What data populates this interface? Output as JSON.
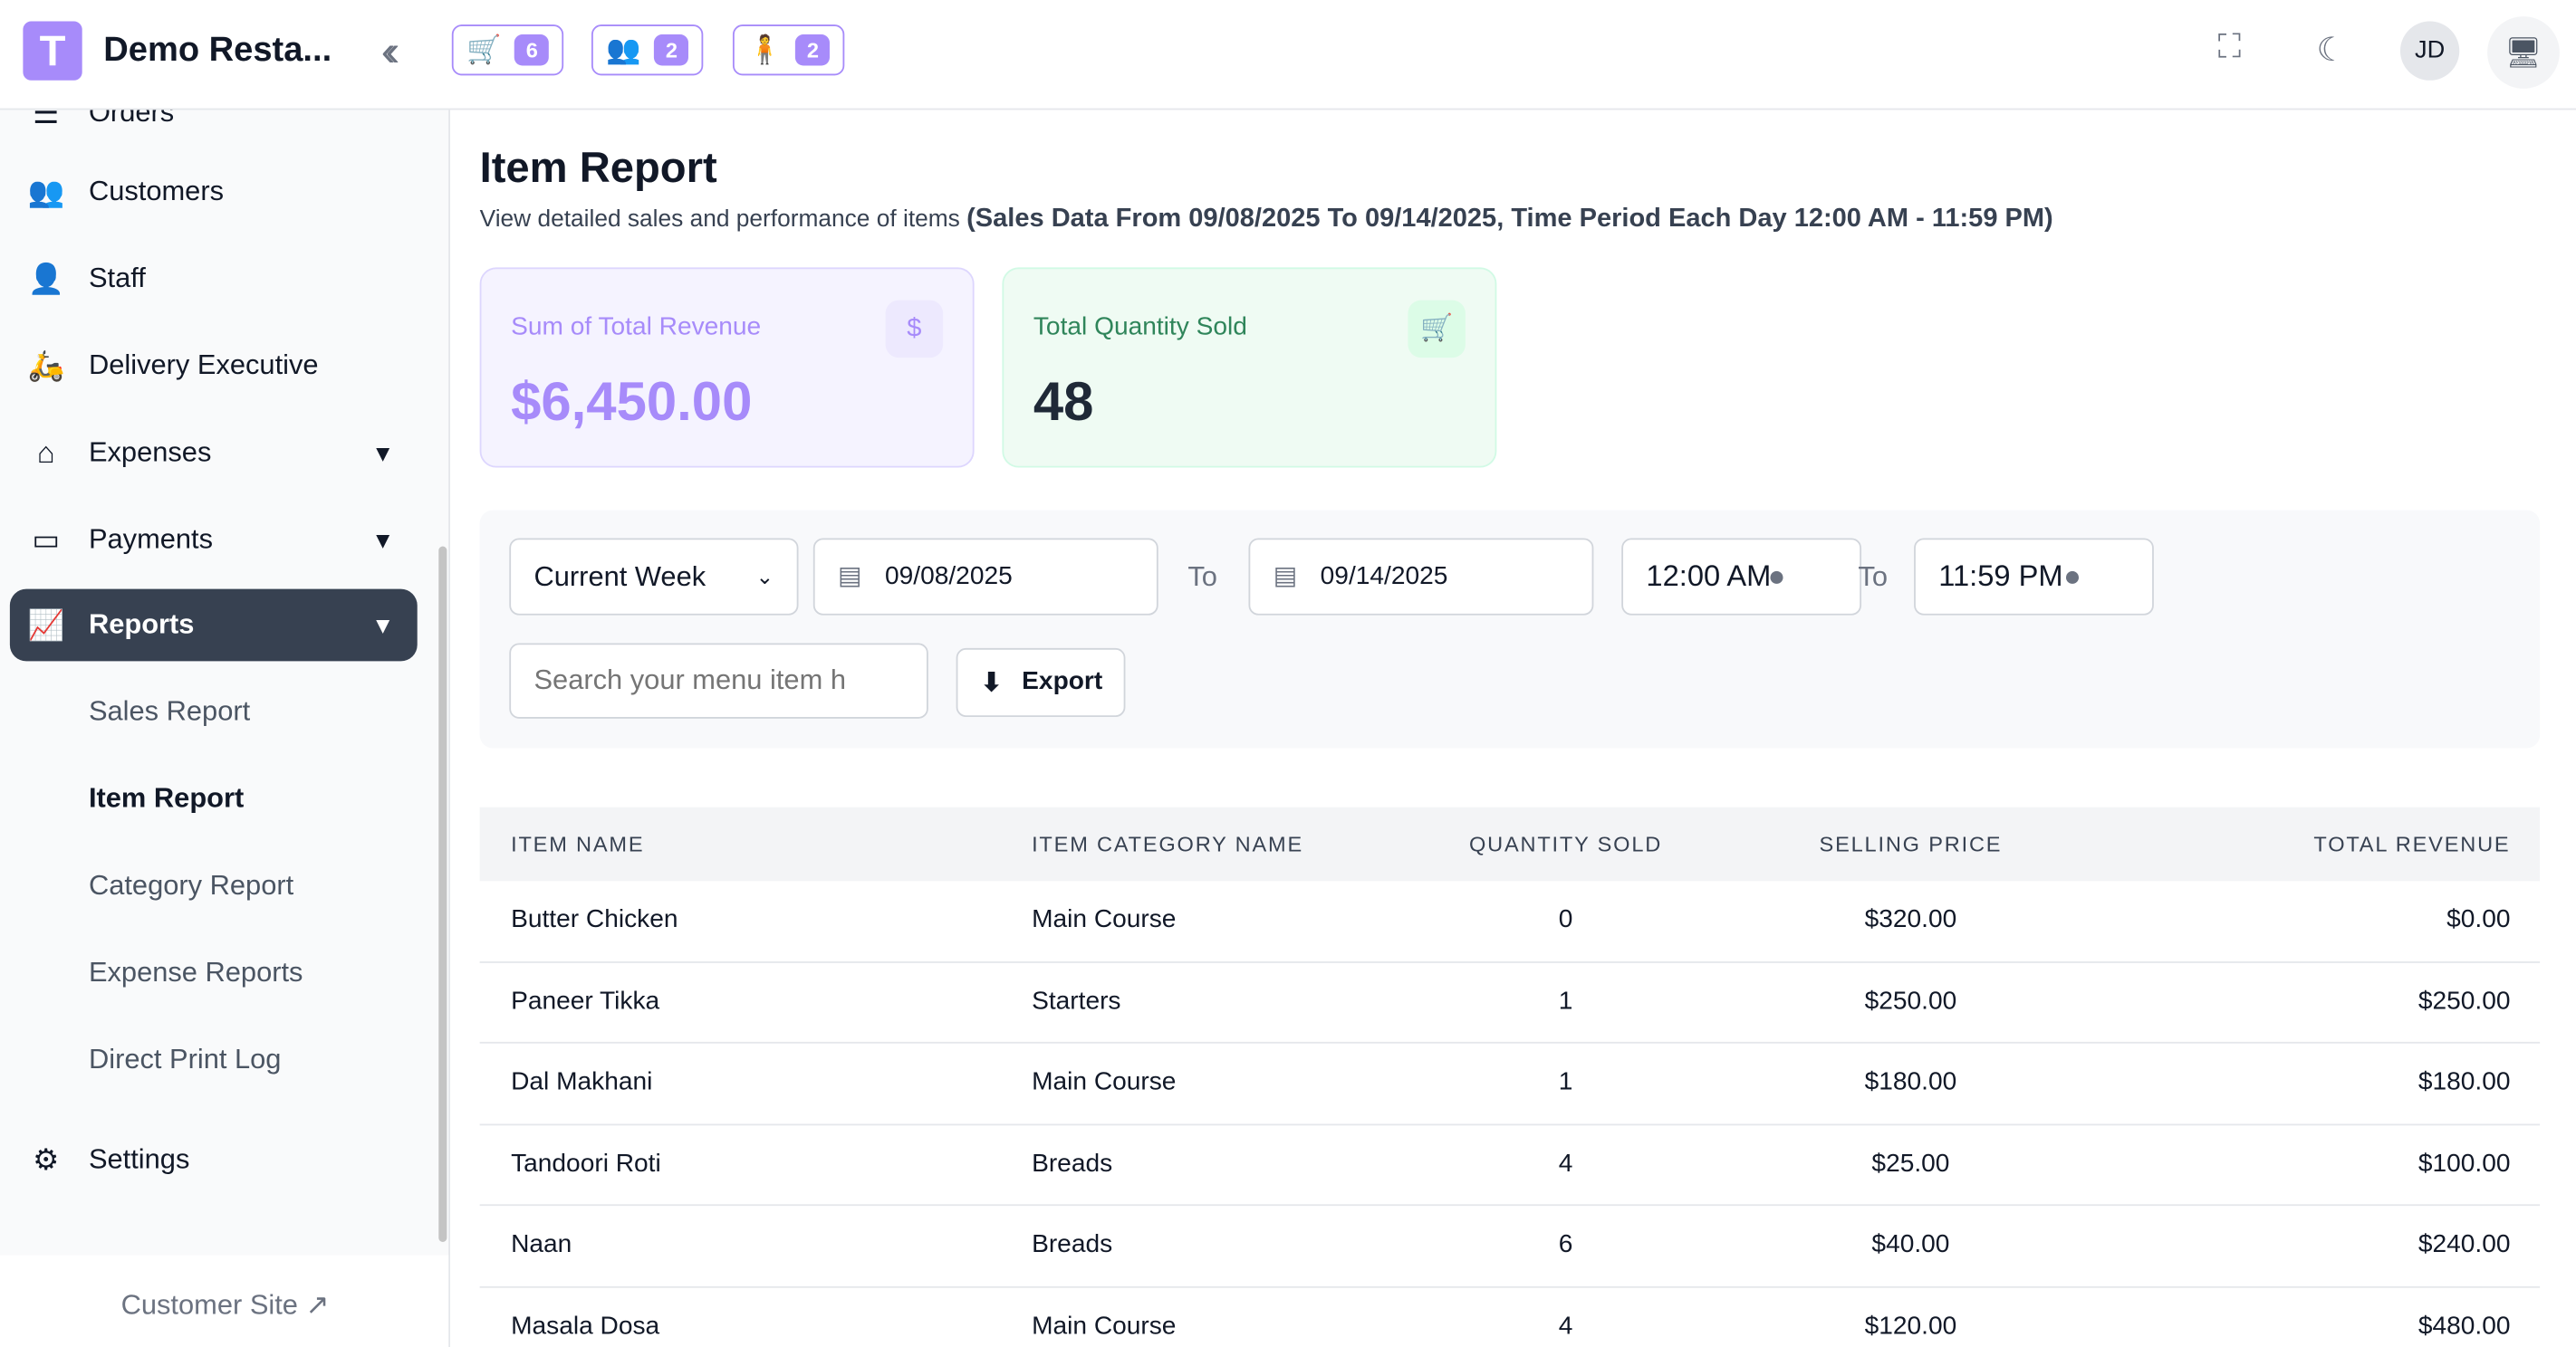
{
  "header": {
    "logo_letter": "T",
    "brand": "Demo Resta...",
    "badges": [
      {
        "icon": "cart-check-icon",
        "count": "6"
      },
      {
        "icon": "waiter-icon",
        "count": "2"
      },
      {
        "icon": "delivery-person-icon",
        "count": "2"
      }
    ],
    "avatar": "JD"
  },
  "sidebar": {
    "items": [
      {
        "label": "Orders"
      },
      {
        "label": "Customers"
      },
      {
        "label": "Staff"
      },
      {
        "label": "Delivery Executive"
      },
      {
        "label": "Expenses"
      },
      {
        "label": "Payments"
      },
      {
        "label": "Reports"
      },
      {
        "label": "Settings"
      }
    ],
    "report_sub": [
      "Sales Report",
      "Item Report",
      "Category Report",
      "Expense Reports",
      "Direct Print Log"
    ],
    "customer_site": "Customer Site"
  },
  "page": {
    "title": "Item Report",
    "description": "View detailed sales and performance of items",
    "range_note": "(Sales Data From 09/08/2025 To 09/14/2025, Time Period Each Day 12:00 AM - 11:59 PM)"
  },
  "cards": {
    "revenue": {
      "label": "Sum of Total Revenue",
      "value": "$6,450.00",
      "color": "#a78bfa"
    },
    "quantity": {
      "label": "Total Quantity Sold",
      "value": "48",
      "color": "#2f855a"
    }
  },
  "filters": {
    "period": "Current Week",
    "start_date": "09/08/2025",
    "to": "To",
    "end_date": "09/14/2025",
    "start_time": "12:00 AM",
    "end_time": "11:59 PM",
    "search_placeholder": "Search your menu item h",
    "export": "Export"
  },
  "table": {
    "headers": [
      "ITEM NAME",
      "ITEM CATEGORY NAME",
      "QUANTITY SOLD",
      "SELLING PRICE",
      "TOTAL REVENUE"
    ],
    "rows": [
      [
        "Butter Chicken",
        "Main Course",
        "0",
        "$320.00",
        "$0.00"
      ],
      [
        "Paneer Tikka",
        "Starters",
        "1",
        "$250.00",
        "$250.00"
      ],
      [
        "Dal Makhani",
        "Main Course",
        "1",
        "$180.00",
        "$180.00"
      ],
      [
        "Tandoori Roti",
        "Breads",
        "4",
        "$25.00",
        "$100.00"
      ],
      [
        "Naan",
        "Breads",
        "6",
        "$40.00",
        "$240.00"
      ],
      [
        "Masala Dosa",
        "Main Course",
        "4",
        "$120.00",
        "$480.00"
      ]
    ]
  }
}
